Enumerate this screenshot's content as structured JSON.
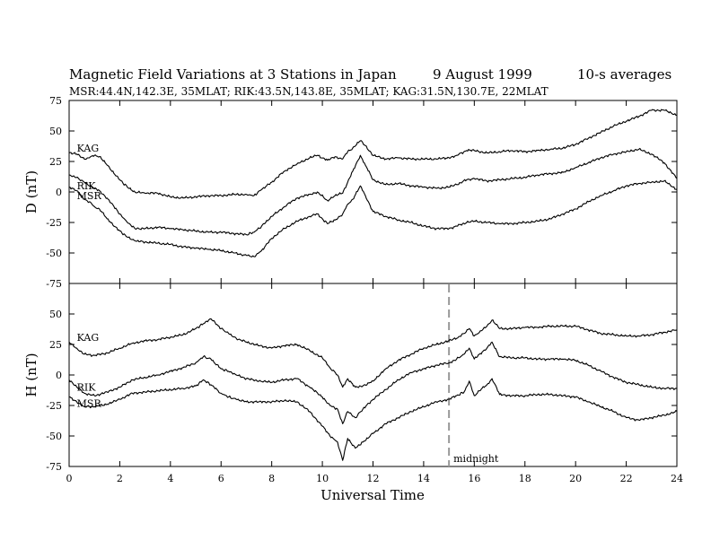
{
  "header": {
    "title": "Magnetic Field Variations at 3 Stations in Japan",
    "date": "9   August   1999",
    "averaging": "10-s averages",
    "subtitle": "MSR:44.4N,142.3E, 35MLAT;   RIK:43.5N,143.8E, 35MLAT;   KAG:31.5N,130.7E, 22MLAT"
  },
  "chart_data": [
    {
      "type": "line",
      "panel": "D",
      "ylabel": "D (nT)",
      "xlabel": "",
      "xlim": [
        0,
        24
      ],
      "ylim": [
        -75,
        75
      ],
      "y_ticks": [
        "75",
        "50",
        "25",
        "0",
        "-25",
        "-50",
        "-75"
      ],
      "x_ticks": [],
      "annotations": [
        {
          "text": "KAG",
          "x": 0.2,
          "y": 36
        },
        {
          "text": "RIK",
          "x": 0.2,
          "y": 5
        },
        {
          "text": "MSR",
          "x": 0.2,
          "y": -3
        }
      ],
      "series": [
        {
          "name": "KAG",
          "x": [
            0,
            0.3,
            0.6,
            0.8,
            1.0,
            1.2,
            1.5,
            2.0,
            2.3,
            2.6,
            3.0,
            3.5,
            4.0,
            4.5,
            5.0,
            5.5,
            6.0,
            6.5,
            7.0,
            7.3,
            7.6,
            8.0,
            8.5,
            9.0,
            9.5,
            9.8,
            10.2,
            10.5,
            10.8,
            11.0,
            11.2,
            11.5,
            11.7,
            12.0,
            12.5,
            13.0,
            13.5,
            14.0,
            14.5,
            15.0,
            15.3,
            15.7,
            16.0,
            16.5,
            17.0,
            17.5,
            18.0,
            18.5,
            19.0,
            19.5,
            20.0,
            20.5,
            21.0,
            21.5,
            22.0,
            22.5,
            23.0,
            23.5,
            24.0
          ],
          "values": [
            32,
            31,
            27,
            28,
            30,
            29,
            22,
            10,
            4,
            0,
            -1,
            -1,
            -4,
            -5,
            -4,
            -3,
            -3,
            -2,
            -2,
            -3,
            2,
            8,
            17,
            23,
            28,
            30,
            26,
            29,
            27,
            33,
            36,
            42,
            38,
            30,
            27,
            28,
            27,
            27,
            27,
            28,
            30,
            34,
            34,
            32,
            33,
            34,
            33,
            34,
            35,
            36,
            39,
            44,
            49,
            54,
            58,
            62,
            67,
            67,
            63
          ]
        },
        {
          "name": "RIK",
          "x": [
            0,
            0.3,
            0.6,
            0.8,
            1.0,
            1.2,
            1.5,
            2.0,
            2.3,
            2.6,
            3.0,
            3.5,
            4.0,
            4.5,
            5.0,
            5.5,
            6.0,
            6.5,
            7.0,
            7.3,
            7.6,
            8.0,
            8.5,
            9.0,
            9.5,
            9.8,
            10.2,
            10.5,
            10.8,
            11.0,
            11.2,
            11.5,
            11.7,
            12.0,
            12.5,
            13.0,
            13.5,
            14.0,
            14.5,
            15.0,
            15.3,
            15.7,
            16.0,
            16.5,
            17.0,
            17.5,
            18.0,
            18.5,
            19.0,
            19.5,
            20.0,
            20.5,
            21.0,
            21.5,
            22.0,
            22.5,
            23.0,
            23.5,
            24.0
          ],
          "values": [
            14,
            12,
            8,
            5,
            3,
            1,
            -5,
            -18,
            -25,
            -30,
            -30,
            -29,
            -30,
            -31,
            -32,
            -33,
            -33,
            -34,
            -35,
            -33,
            -28,
            -20,
            -12,
            -5,
            -2,
            0,
            -7,
            -3,
            -1,
            8,
            17,
            30,
            22,
            10,
            6,
            7,
            5,
            4,
            3,
            4,
            6,
            10,
            11,
            9,
            10,
            11,
            12,
            14,
            15,
            16,
            20,
            24,
            28,
            31,
            33,
            35,
            31,
            24,
            11
          ]
        },
        {
          "name": "MSR",
          "x": [
            0,
            0.3,
            0.6,
            0.8,
            1.0,
            1.2,
            1.5,
            2.0,
            2.3,
            2.6,
            3.0,
            3.5,
            4.0,
            4.5,
            5.0,
            5.5,
            6.0,
            6.5,
            7.0,
            7.3,
            7.6,
            8.0,
            8.5,
            9.0,
            9.5,
            9.8,
            10.2,
            10.5,
            10.8,
            11.0,
            11.2,
            11.5,
            11.7,
            12.0,
            12.5,
            13.0,
            13.5,
            14.0,
            14.5,
            15.0,
            15.3,
            15.7,
            16.0,
            16.5,
            17.0,
            17.5,
            18.0,
            18.5,
            19.0,
            19.5,
            20.0,
            20.5,
            21.0,
            21.5,
            22.0,
            22.5,
            23.0,
            23.5,
            24.0
          ],
          "values": [
            4,
            1,
            -6,
            -8,
            -12,
            -14,
            -22,
            -32,
            -37,
            -40,
            -41,
            -42,
            -43,
            -45,
            -46,
            -47,
            -48,
            -50,
            -52,
            -53,
            -48,
            -38,
            -30,
            -24,
            -20,
            -18,
            -26,
            -23,
            -18,
            -10,
            -6,
            5,
            -3,
            -16,
            -20,
            -23,
            -25,
            -28,
            -30,
            -30,
            -28,
            -25,
            -24,
            -25,
            -26,
            -26,
            -25,
            -24,
            -22,
            -18,
            -14,
            -8,
            -3,
            1,
            5,
            7,
            8,
            9,
            2
          ]
        }
      ]
    },
    {
      "type": "line",
      "panel": "H",
      "ylabel": "H (nT)",
      "xlabel": "Universal Time",
      "xlim": [
        0,
        24
      ],
      "ylim": [
        -75,
        75
      ],
      "y_ticks": [
        "50",
        "25",
        "0",
        "-25",
        "-50",
        "-75"
      ],
      "x_ticks": [
        "0",
        "2",
        "4",
        "6",
        "8",
        "10",
        "12",
        "14",
        "16",
        "18",
        "20",
        "22",
        "24"
      ],
      "vline": {
        "x": 15,
        "label": "midnight"
      },
      "annotations": [
        {
          "text": "KAG",
          "x": 0.2,
          "y": 31
        },
        {
          "text": "RIK",
          "x": 0.2,
          "y": -10
        },
        {
          "text": "MSR",
          "x": 0.2,
          "y": -23
        }
      ],
      "series": [
        {
          "name": "KAG",
          "x": [
            0,
            0.3,
            0.6,
            1.0,
            1.5,
            2.0,
            2.5,
            3.0,
            3.5,
            4.0,
            4.5,
            5.0,
            5.3,
            5.6,
            6.0,
            6.3,
            6.6,
            7.0,
            7.5,
            8.0,
            8.5,
            9.0,
            9.5,
            10.0,
            10.3,
            10.6,
            10.8,
            11.0,
            11.3,
            11.6,
            12.0,
            12.5,
            13.0,
            13.5,
            14.0,
            14.5,
            15.0,
            15.3,
            15.6,
            15.8,
            16.0,
            16.2,
            16.5,
            16.7,
            17.0,
            17.5,
            18.0,
            18.5,
            19.0,
            19.5,
            20.0,
            20.5,
            21.0,
            21.5,
            22.0,
            22.5,
            23.0,
            23.5,
            24.0
          ],
          "values": [
            27,
            22,
            17,
            16,
            18,
            22,
            26,
            28,
            29,
            31,
            33,
            38,
            42,
            46,
            38,
            34,
            30,
            27,
            24,
            22,
            24,
            25,
            20,
            14,
            6,
            0,
            -10,
            -3,
            -10,
            -9,
            -5,
            5,
            12,
            17,
            22,
            25,
            28,
            30,
            34,
            38,
            32,
            35,
            40,
            45,
            38,
            38,
            39,
            39,
            40,
            40,
            40,
            37,
            34,
            33,
            32,
            32,
            33,
            35,
            37
          ]
        },
        {
          "name": "RIK",
          "x": [
            0,
            0.3,
            0.6,
            1.0,
            1.5,
            2.0,
            2.5,
            3.0,
            3.5,
            4.0,
            4.5,
            5.0,
            5.3,
            5.6,
            6.0,
            6.3,
            6.6,
            7.0,
            7.5,
            8.0,
            8.5,
            9.0,
            9.5,
            10.0,
            10.3,
            10.6,
            10.8,
            11.0,
            11.3,
            11.6,
            12.0,
            12.5,
            13.0,
            13.5,
            14.0,
            14.5,
            15.0,
            15.3,
            15.6,
            15.8,
            16.0,
            16.2,
            16.5,
            16.7,
            17.0,
            17.5,
            18.0,
            18.5,
            19.0,
            19.5,
            20.0,
            20.5,
            21.0,
            21.5,
            22.0,
            22.5,
            23.0,
            23.5,
            24.0
          ],
          "values": [
            -4,
            -10,
            -15,
            -17,
            -14,
            -10,
            -4,
            -2,
            0,
            3,
            6,
            10,
            15,
            13,
            5,
            3,
            0,
            -3,
            -5,
            -6,
            -4,
            -3,
            -10,
            -18,
            -25,
            -28,
            -40,
            -30,
            -35,
            -28,
            -20,
            -12,
            -4,
            2,
            5,
            8,
            10,
            13,
            17,
            22,
            13,
            17,
            22,
            27,
            15,
            14,
            14,
            13,
            13,
            13,
            12,
            8,
            3,
            -2,
            -6,
            -8,
            -10,
            -11,
            -11
          ]
        },
        {
          "name": "MSR",
          "x": [
            0,
            0.3,
            0.6,
            1.0,
            1.5,
            2.0,
            2.5,
            3.0,
            3.5,
            4.0,
            4.5,
            5.0,
            5.3,
            5.6,
            6.0,
            6.3,
            6.6,
            7.0,
            7.5,
            8.0,
            8.5,
            9.0,
            9.5,
            10.0,
            10.3,
            10.6,
            10.8,
            11.0,
            11.3,
            11.6,
            12.0,
            12.5,
            13.0,
            13.5,
            14.0,
            14.5,
            15.0,
            15.3,
            15.6,
            15.8,
            16.0,
            16.2,
            16.5,
            16.7,
            17.0,
            17.5,
            18.0,
            18.5,
            19.0,
            19.5,
            20.0,
            20.5,
            21.0,
            21.5,
            22.0,
            22.5,
            23.0,
            23.5,
            24.0
          ],
          "values": [
            -18,
            -22,
            -26,
            -26,
            -24,
            -20,
            -15,
            -14,
            -13,
            -12,
            -11,
            -9,
            -4,
            -8,
            -15,
            -18,
            -20,
            -22,
            -22,
            -22,
            -21,
            -22,
            -30,
            -42,
            -50,
            -55,
            -70,
            -52,
            -60,
            -55,
            -48,
            -40,
            -35,
            -30,
            -26,
            -22,
            -20,
            -17,
            -14,
            -5,
            -17,
            -13,
            -8,
            -3,
            -16,
            -17,
            -17,
            -16,
            -16,
            -17,
            -18,
            -22,
            -26,
            -30,
            -35,
            -37,
            -35,
            -33,
            -30
          ]
        }
      ]
    }
  ]
}
